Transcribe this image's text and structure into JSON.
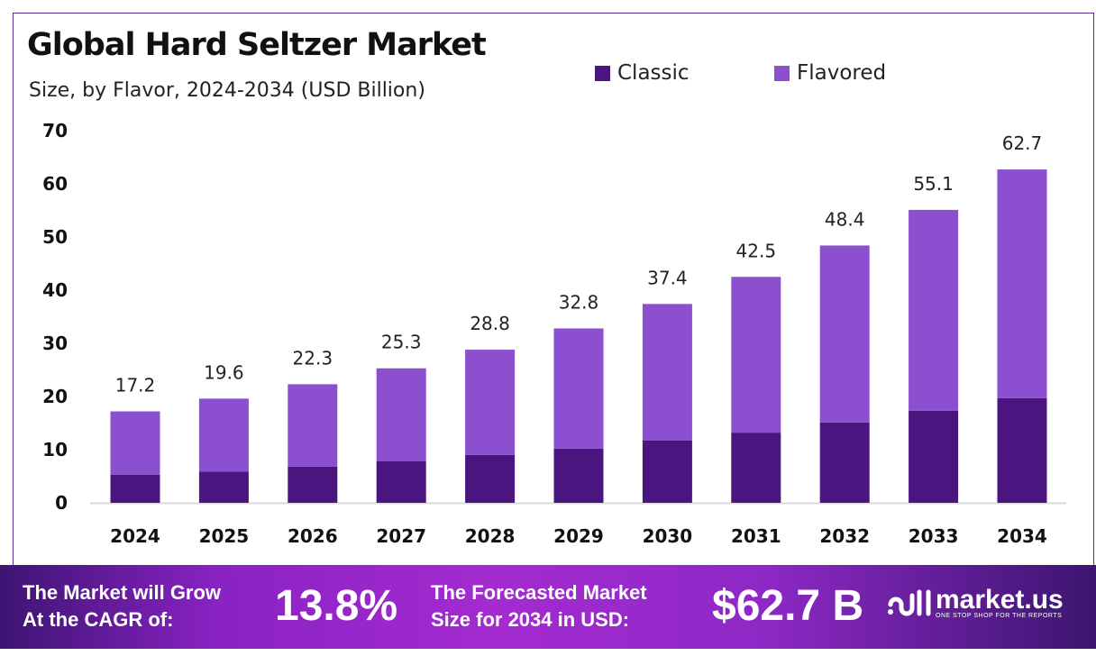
{
  "header": {
    "title": "Global Hard Seltzer Market",
    "subtitle": "Size, by Flavor, 2024-2034 (USD Billion)"
  },
  "chart_data": {
    "type": "bar",
    "stacked": true,
    "title": "Global Hard Seltzer Market",
    "subtitle": "Size, by Flavor, 2024-2034 (USD Billion)",
    "categories": [
      "2024",
      "2025",
      "2026",
      "2027",
      "2028",
      "2029",
      "2030",
      "2031",
      "2032",
      "2033",
      "2034"
    ],
    "series": [
      {
        "name": "Classic",
        "color": "#4b1580",
        "values": [
          5.3,
          5.9,
          6.8,
          7.8,
          9.0,
          10.2,
          11.7,
          13.2,
          15.1,
          17.3,
          19.7
        ]
      },
      {
        "name": "Flavored",
        "color": "#8b4fcf",
        "values": [
          11.9,
          13.7,
          15.5,
          17.5,
          19.8,
          22.6,
          25.7,
          29.3,
          33.3,
          37.8,
          43.0
        ]
      }
    ],
    "totals": [
      "17.2",
      "19.6",
      "22.3",
      "25.3",
      "28.8",
      "32.8",
      "37.4",
      "42.5",
      "48.4",
      "55.1",
      "62.7"
    ],
    "ylim": [
      0,
      70
    ],
    "yticks": [
      "0",
      "10",
      "20",
      "30",
      "40",
      "50",
      "60",
      "70"
    ],
    "grid": false,
    "legend": "top"
  },
  "footer": {
    "cagr_label_1": "The Market will Grow",
    "cagr_label_2": "At the CAGR of:",
    "cagr_value": "13.8%",
    "forecast_label_1": "The Forecasted Market",
    "forecast_label_2": "Size for 2034 in USD:",
    "forecast_value": "$62.7 B",
    "logo_name": "market.us",
    "logo_tagline": "ONE STOP SHOP FOR THE REPORTS"
  }
}
